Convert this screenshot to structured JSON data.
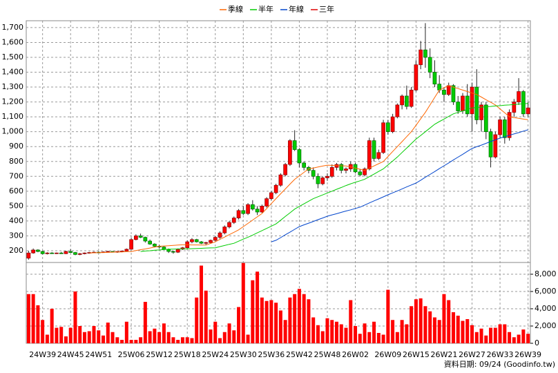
{
  "chart_data": [
    {
      "type": "candlestick",
      "categories": [
        null,
        null,
        null,
        "24W39",
        null,
        null,
        null,
        null,
        null,
        "24W45",
        null,
        null,
        null,
        null,
        null,
        "24W51",
        null,
        null,
        null,
        null,
        null,
        null,
        "25W06",
        null,
        null,
        null,
        null,
        null,
        "25W12",
        null,
        null,
        null,
        null,
        null,
        "25W18",
        null,
        null,
        null,
        null,
        null,
        "25W24",
        null,
        null,
        null,
        null,
        null,
        "25W30",
        null,
        null,
        null,
        null,
        null,
        "25W36",
        null,
        null,
        null,
        null,
        null,
        "25W42",
        null,
        null,
        null,
        null,
        null,
        "25W48",
        null,
        null,
        null,
        null,
        null,
        "26W02",
        null,
        null,
        null,
        null,
        null,
        null,
        "26W09",
        null,
        null,
        null,
        null,
        null,
        "26W15",
        null,
        null,
        null,
        null,
        null,
        "26W21",
        null,
        null,
        null,
        null,
        null,
        "26W27",
        null,
        null,
        null,
        null,
        null,
        "26W33",
        null,
        null,
        null,
        null,
        null,
        "26W39"
      ],
      "open": [
        150,
        185,
        205,
        195,
        180,
        185,
        182,
        185,
        180,
        195,
        188,
        175,
        180,
        185,
        188,
        190,
        188,
        192,
        195,
        190,
        195,
        198,
        210,
        275,
        300,
        290,
        265,
        245,
        230,
        225,
        210,
        195,
        190,
        210,
        220,
        260,
        275,
        260,
        250,
        255,
        270,
        290,
        320,
        360,
        390,
        420,
        470,
        450,
        510,
        480,
        460,
        500,
        550,
        590,
        640,
        710,
        780,
        940,
        880,
        790,
        760,
        740,
        700,
        650,
        690,
        700,
        760,
        780,
        740,
        750,
        780,
        730,
        710,
        750,
        940,
        820,
        860,
        1060,
        1000,
        1100,
        1180,
        1240,
        1170,
        1280,
        1450,
        1550,
        1500,
        1400,
        1320,
        1280,
        1250,
        1310,
        1200,
        1140,
        1240,
        1120,
        1300,
        1080,
        1180,
        1000,
        830,
        980,
        1080,
        960,
        1130,
        1200,
        1270,
        1120
      ],
      "high": [
        200,
        215,
        210,
        200,
        190,
        190,
        188,
        192,
        200,
        210,
        192,
        185,
        188,
        192,
        195,
        196,
        195,
        200,
        198,
        196,
        200,
        215,
        285,
        310,
        315,
        295,
        275,
        250,
        240,
        230,
        215,
        200,
        215,
        225,
        270,
        285,
        280,
        265,
        260,
        275,
        300,
        330,
        370,
        400,
        430,
        480,
        500,
        520,
        540,
        500,
        510,
        560,
        600,
        650,
        720,
        790,
        950,
        1010,
        890,
        800,
        770,
        760,
        720,
        700,
        720,
        780,
        790,
        790,
        760,
        800,
        790,
        750,
        760,
        960,
        960,
        880,
        1080,
        1080,
        1120,
        1190,
        1250,
        1310,
        1300,
        1480,
        1610,
        1730,
        1560,
        1480,
        1380,
        1300,
        1330,
        1320,
        1240,
        1260,
        1320,
        1330,
        1420,
        1200,
        1200,
        1020,
        1000,
        1100,
        1100,
        1150,
        1220,
        1360,
        1280,
        1200
      ],
      "low": [
        140,
        180,
        190,
        175,
        175,
        180,
        178,
        180,
        178,
        185,
        170,
        170,
        176,
        180,
        184,
        185,
        186,
        188,
        188,
        186,
        190,
        195,
        208,
        270,
        285,
        255,
        240,
        225,
        215,
        205,
        185,
        180,
        185,
        205,
        215,
        250,
        255,
        245,
        240,
        250,
        265,
        280,
        310,
        350,
        380,
        410,
        440,
        440,
        470,
        440,
        455,
        490,
        540,
        580,
        630,
        700,
        770,
        870,
        760,
        740,
        720,
        680,
        620,
        640,
        670,
        690,
        740,
        720,
        720,
        730,
        720,
        700,
        700,
        740,
        800,
        810,
        850,
        980,
        990,
        1090,
        1150,
        1150,
        1160,
        1270,
        1420,
        1430,
        1360,
        1300,
        1260,
        1200,
        1240,
        1180,
        1120,
        1120,
        1100,
        1000,
        1050,
        1000,
        950,
        760,
        820,
        960,
        920,
        940,
        1100,
        1180,
        1100,
        1100
      ],
      "close": [
        185,
        205,
        195,
        180,
        185,
        182,
        185,
        180,
        195,
        188,
        175,
        180,
        185,
        188,
        190,
        188,
        192,
        195,
        190,
        195,
        198,
        210,
        275,
        300,
        290,
        265,
        245,
        230,
        225,
        210,
        195,
        190,
        210,
        220,
        260,
        275,
        260,
        250,
        255,
        270,
        290,
        320,
        360,
        390,
        420,
        470,
        450,
        510,
        480,
        460,
        500,
        550,
        590,
        640,
        710,
        780,
        940,
        880,
        790,
        760,
        740,
        700,
        650,
        690,
        700,
        760,
        780,
        740,
        750,
        780,
        730,
        710,
        750,
        940,
        820,
        860,
        1060,
        1000,
        1100,
        1180,
        1240,
        1170,
        1280,
        1450,
        1550,
        1500,
        1400,
        1320,
        1280,
        1250,
        1310,
        1200,
        1140,
        1240,
        1120,
        1300,
        1080,
        1180,
        1000,
        830,
        980,
        1080,
        960,
        1130,
        1200,
        1270,
        1120,
        1160
      ],
      "up_color": "#ff0000",
      "down_color": "#00cc00",
      "series": [
        {
          "name": "季線",
          "color": "#ff6600",
          "values": [
            null,
            null,
            null,
            null,
            null,
            null,
            null,
            null,
            null,
            null,
            null,
            null,
            null,
            185,
            186,
            187,
            188,
            189,
            190,
            191,
            192,
            194,
            195,
            201,
            207,
            212,
            218,
            224,
            230,
            232,
            234,
            236,
            238,
            240,
            240,
            239,
            239,
            238,
            238,
            249,
            260,
            276,
            292,
            308,
            324,
            340,
            362,
            384,
            406,
            428,
            450,
            483,
            517,
            550,
            583,
            615,
            648,
            680,
            703,
            727,
            750,
            756,
            763,
            769,
            775,
            774,
            773,
            771,
            770,
            763,
            755,
            748,
            740,
            755,
            770,
            785,
            800,
            833,
            867,
            900,
            933,
            967,
            1000,
            1043,
            1087,
            1130,
            1180,
            1230,
            1280,
            1295,
            1310,
            1300,
            1290,
            1280,
            1270,
            1260,
            1250,
            1233,
            1215,
            1198,
            1180,
            1153,
            1127,
            1100,
            1095,
            1090,
            1085,
            1080
          ]
        },
        {
          "name": "半年",
          "color": "#00cc00",
          "values": [
            null,
            null,
            null,
            null,
            null,
            null,
            null,
            null,
            null,
            null,
            null,
            null,
            null,
            null,
            null,
            null,
            null,
            null,
            null,
            null,
            null,
            null,
            null,
            null,
            195,
            198,
            200,
            203,
            205,
            208,
            210,
            211,
            212,
            213,
            213,
            214,
            215,
            216,
            218,
            219,
            220,
            228,
            235,
            243,
            250,
            264,
            278,
            291,
            305,
            320,
            335,
            350,
            365,
            380,
            405,
            430,
            455,
            480,
            498,
            515,
            533,
            550,
            563,
            575,
            588,
            600,
            613,
            625,
            638,
            650,
            660,
            670,
            680,
            698,
            715,
            733,
            750,
            777,
            803,
            830,
            860,
            890,
            920,
            950,
            975,
            1000,
            1025,
            1050,
            1068,
            1085,
            1103,
            1120,
            1130,
            1140,
            1150,
            1160,
            1163,
            1165,
            1168,
            1170,
            1173,
            1175,
            1178,
            1180,
            1183,
            1185,
            1188,
            1190
          ]
        },
        {
          "name": "年線",
          "color": "#0044cc",
          "values": [
            null,
            null,
            null,
            null,
            null,
            null,
            null,
            null,
            null,
            null,
            null,
            null,
            null,
            null,
            null,
            null,
            null,
            null,
            null,
            null,
            null,
            null,
            null,
            null,
            null,
            null,
            null,
            null,
            null,
            null,
            null,
            null,
            null,
            null,
            null,
            null,
            null,
            null,
            null,
            null,
            null,
            null,
            null,
            null,
            null,
            null,
            null,
            null,
            null,
            null,
            null,
            null,
            260,
            270,
            288,
            307,
            325,
            344,
            362,
            374,
            385,
            397,
            409,
            420,
            432,
            441,
            449,
            458,
            467,
            475,
            484,
            493,
            507,
            521,
            535,
            548,
            562,
            576,
            589,
            602,
            615,
            629,
            642,
            655,
            674,
            694,
            713,
            732,
            752,
            771,
            790,
            810,
            829,
            848,
            868,
            887,
            899,
            910,
            922,
            934,
            945,
            957,
            966,
            976,
            985,
            994,
            1004,
            1013
          ]
        },
        {
          "name": "三年",
          "color": "#dd0000"
        }
      ],
      "ylim": [
        121,
        1746
      ],
      "yticks": [
        {
          "value": 200,
          "label": "200"
        },
        {
          "value": 300,
          "label": "300"
        },
        {
          "value": 400,
          "label": "400"
        },
        {
          "value": 500,
          "label": "500"
        },
        {
          "value": 600,
          "label": "600"
        },
        {
          "value": 700,
          "label": "700"
        },
        {
          "value": 800,
          "label": "800"
        },
        {
          "value": 900,
          "label": "900"
        },
        {
          "value": 1000,
          "label": "1,000"
        },
        {
          "value": 1100,
          "label": "1,100"
        },
        {
          "value": 1200,
          "label": "1,200"
        },
        {
          "value": 1300,
          "label": "1,300"
        },
        {
          "value": 1400,
          "label": "1,400"
        },
        {
          "value": 1500,
          "label": "1,500"
        },
        {
          "value": 1600,
          "label": "1,600"
        },
        {
          "value": 1700,
          "label": "1,700"
        }
      ],
      "grid": true
    },
    {
      "type": "volume",
      "color": "#ff0000",
      "values": [
        5700,
        5700,
        4400,
        2700,
        1000,
        4000,
        1800,
        1900,
        800,
        1800,
        6000,
        2000,
        1300,
        1400,
        2000,
        1500,
        900,
        2400,
        1300,
        700,
        400,
        2500,
        400,
        400,
        700,
        4800,
        1400,
        1700,
        1300,
        2300,
        1300,
        700,
        400,
        700,
        700,
        600,
        5300,
        9000,
        6100,
        1600,
        2500,
        600,
        1300,
        2300,
        1500,
        4200,
        9300,
        1000,
        7300,
        8300,
        5300,
        4900,
        5000,
        4700,
        3800,
        2700,
        5300,
        5700,
        6300,
        5700,
        5100,
        3000,
        2100,
        1400,
        2900,
        2700,
        2500,
        2200,
        1800,
        5000,
        2000,
        1100,
        2300,
        1300,
        2500,
        1200,
        1000,
        6200,
        2700,
        1300,
        2700,
        2200,
        4300,
        5100,
        5200,
        4300,
        3700,
        3000,
        2700,
        5700,
        5000,
        3600,
        3200,
        2600,
        2800,
        2100,
        1300,
        1700,
        900,
        1800,
        1800,
        2200,
        2200,
        1300,
        700,
        1000,
        1600,
        1100
      ],
      "ylim": [
        0,
        9360
      ],
      "yticks": [
        0,
        {
          "value": 2000,
          "label": "2,000"
        },
        {
          "value": 4000,
          "label": "4,000"
        },
        {
          "value": 6000,
          "label": "6,000"
        },
        {
          "value": 8000,
          "label": "8,000"
        }
      ],
      "grid": true
    }
  ],
  "footer": "資料日期: 09/24  (Goodinfo.tw)"
}
